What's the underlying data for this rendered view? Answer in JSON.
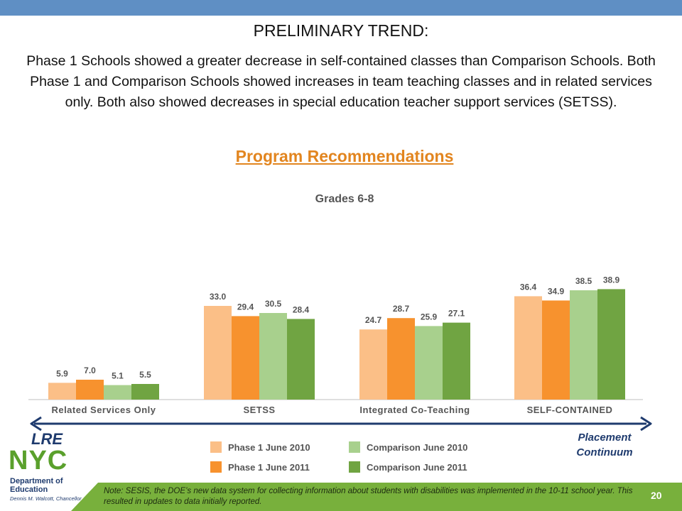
{
  "slide": {
    "heading": "PRELIMINARY TREND:",
    "summary": "Phase 1 Schools showed a greater decrease in self-contained classes than Comparison Schools. Both Phase 1 and Comparison Schools showed increases in team teaching classes and in related services only.  Both also showed decreases in special education teacher support services (SETSS).",
    "section_title": "Program Recommendations",
    "lre_label": "LRE",
    "placement_label": "Placement Continuum",
    "note": "Note: SESIS, the DOE’s new data system for collecting information about students with disabilities was implemented in the 10-11 school year. This resulted in updates to data initially reported.",
    "page_number": "20"
  },
  "logo": {
    "nyc": "NYC",
    "dept_line1": "Department of",
    "dept_line2": "Education",
    "chancellor": "Dennis M. Walcott, Chancellor"
  },
  "colors": {
    "top_bar": "#5f8fc4",
    "accent_orange": "#e2851f",
    "arrow": "#1f3b6e",
    "footer_green": "#78b03c",
    "series": [
      "#fbbf87",
      "#f7922e",
      "#a8d08d",
      "#70a442"
    ]
  },
  "chart_data": {
    "type": "bar",
    "title": "Grades 6-8",
    "categories": [
      "Related Services Only",
      "SETSS",
      "Integrated Co-Teaching",
      "SELF-CONTAINED"
    ],
    "series": [
      {
        "name": "Phase 1 June 2010",
        "values": [
          5.9,
          33.0,
          24.7,
          36.4
        ]
      },
      {
        "name": "Phase 1 June 2011",
        "values": [
          7.0,
          29.4,
          28.7,
          34.9
        ]
      },
      {
        "name": "Comparison June 2010",
        "values": [
          5.1,
          30.5,
          25.9,
          38.5
        ]
      },
      {
        "name": "Comparison June 2011",
        "values": [
          5.5,
          28.4,
          27.1,
          38.9
        ]
      }
    ],
    "value_labels": [
      [
        "5.9",
        "33.0",
        "24.7",
        "36.4"
      ],
      [
        "7.0",
        "29.4",
        "28.7",
        "34.9"
      ],
      [
        "5.1",
        "30.5",
        "25.9",
        "38.5"
      ],
      [
        "5.5",
        "28.4",
        "27.1",
        "38.9"
      ]
    ],
    "xlabel": "",
    "ylabel": "",
    "ylim": [
      0,
      40
    ],
    "grid": false,
    "legend_position": "bottom"
  }
}
